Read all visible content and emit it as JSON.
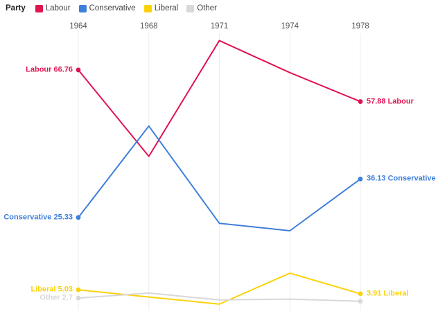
{
  "legend": {
    "title": "Party",
    "items": [
      {
        "label": "Labour"
      },
      {
        "label": "Conservative"
      },
      {
        "label": "Liberal"
      },
      {
        "label": "Other"
      }
    ]
  },
  "chart_data": {
    "type": "line",
    "title": "",
    "categories": [
      "1964",
      "1968",
      "1971",
      "1974",
      "1978"
    ],
    "series": [
      {
        "name": "Labour",
        "color": "#e11350",
        "values": [
          66.76,
          42.5,
          75.0,
          66.0,
          57.88
        ],
        "start_label": "Labour 66.76",
        "end_label": "57.88 Labour"
      },
      {
        "name": "Conservative",
        "color": "#3f7fdb",
        "values": [
          25.33,
          51.0,
          23.7,
          21.6,
          36.13
        ],
        "start_label": "Conservative 25.33",
        "end_label": "36.13 Conservative"
      },
      {
        "name": "Liberal",
        "color": "#fcd20b",
        "values": [
          5.03,
          3.0,
          1.0,
          9.7,
          3.91
        ],
        "start_label": "Liberal 5.03",
        "end_label": "3.91 Liberal"
      },
      {
        "name": "Other",
        "color": "#d8d8d8",
        "values": [
          2.7,
          4.1,
          2.2,
          2.4,
          1.8
        ],
        "start_label": "Other 2.7",
        "end_label": ""
      }
    ],
    "ylim": [
      0,
      75.5
    ],
    "grid": "vertical-only",
    "gridline_color": "#ededed",
    "x_axis_position": "top",
    "tick_color": "#555555",
    "legend_position": "top-left",
    "point_markers": "endpoints-only"
  }
}
